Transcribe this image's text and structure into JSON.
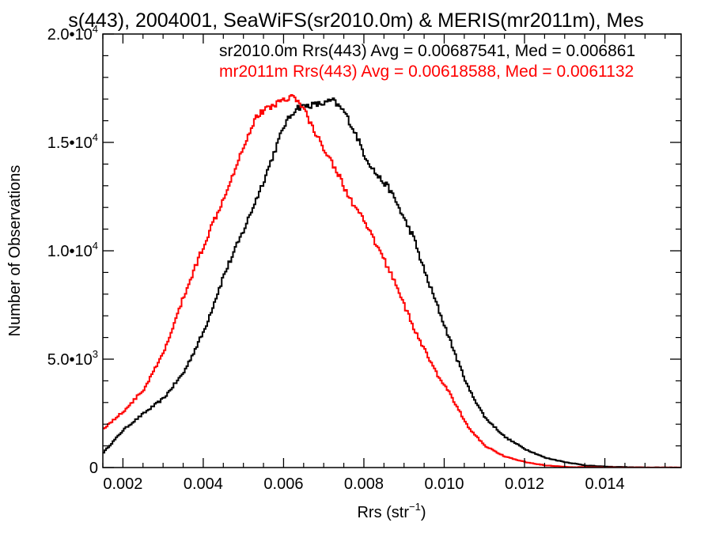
{
  "chart_data": {
    "type": "line",
    "title": "s(443), 2004001, SeaWiFS(sr2010.0m) & MERIS(mr2011m), Mes",
    "xlabel": "Rrs (str",
    "xlabel_sup": "−1",
    "xlabel_end": ")",
    "ylabel": "Number of Observations",
    "xlim": [
      0.0015,
      0.0159
    ],
    "ylim": [
      0,
      20000
    ],
    "grid": false,
    "legend_position": "top-right",
    "x_ticks": [
      {
        "value": 0.002,
        "label": "0.002"
      },
      {
        "value": 0.004,
        "label": "0.004"
      },
      {
        "value": 0.006,
        "label": "0.006"
      },
      {
        "value": 0.008,
        "label": "0.008"
      },
      {
        "value": 0.01,
        "label": "0.010"
      },
      {
        "value": 0.012,
        "label": "0.012"
      },
      {
        "value": 0.014,
        "label": "0.014"
      }
    ],
    "y_ticks": [
      {
        "value": 0,
        "mantissa": "0",
        "exp": ""
      },
      {
        "value": 5000,
        "mantissa": "5.0•10",
        "exp": "3"
      },
      {
        "value": 10000,
        "mantissa": "1.0•10",
        "exp": "4"
      },
      {
        "value": 15000,
        "mantissa": "1.5•10",
        "exp": "4"
      },
      {
        "value": 20000,
        "mantissa": "2.0•10",
        "exp": "4"
      }
    ],
    "series": [
      {
        "name": "sr2010.0m Rrs(443) Avg = 0.00687541, Med = 0.006861",
        "color": "#000000",
        "points": [
          [
            0.0015,
            700
          ],
          [
            0.002,
            1750
          ],
          [
            0.0025,
            2500
          ],
          [
            0.003,
            3200
          ],
          [
            0.0035,
            4400
          ],
          [
            0.004,
            6300
          ],
          [
            0.0045,
            8900
          ],
          [
            0.005,
            11000
          ],
          [
            0.0055,
            13300
          ],
          [
            0.006,
            15800
          ],
          [
            0.0063,
            16600
          ],
          [
            0.0066,
            16700
          ],
          [
            0.007,
            16800
          ],
          [
            0.0072,
            16950
          ],
          [
            0.0075,
            16400
          ],
          [
            0.0078,
            15300
          ],
          [
            0.008,
            14400
          ],
          [
            0.0083,
            13500
          ],
          [
            0.0086,
            12900
          ],
          [
            0.0088,
            12200
          ],
          [
            0.009,
            11400
          ],
          [
            0.0092,
            10700
          ],
          [
            0.0095,
            9000
          ],
          [
            0.0098,
            7500
          ],
          [
            0.01,
            6500
          ],
          [
            0.0103,
            5000
          ],
          [
            0.0106,
            3600
          ],
          [
            0.011,
            2300
          ],
          [
            0.0115,
            1400
          ],
          [
            0.012,
            850
          ],
          [
            0.0125,
            450
          ],
          [
            0.013,
            250
          ],
          [
            0.0135,
            100
          ],
          [
            0.014,
            40
          ],
          [
            0.015,
            0
          ],
          [
            0.0159,
            0
          ]
        ]
      },
      {
        "name": "mr2011m Rrs(443) Avg = 0.00618588, Med = 0.0061132",
        "color": "#ff0000",
        "points": [
          [
            0.0015,
            1800
          ],
          [
            0.002,
            2600
          ],
          [
            0.0025,
            3600
          ],
          [
            0.003,
            5300
          ],
          [
            0.0035,
            7900
          ],
          [
            0.004,
            10300
          ],
          [
            0.0045,
            12500
          ],
          [
            0.005,
            14900
          ],
          [
            0.0053,
            16200
          ],
          [
            0.0056,
            16600
          ],
          [
            0.006,
            17000
          ],
          [
            0.0062,
            17150
          ],
          [
            0.0065,
            16500
          ],
          [
            0.0068,
            15300
          ],
          [
            0.007,
            14700
          ],
          [
            0.0073,
            13700
          ],
          [
            0.0076,
            12500
          ],
          [
            0.008,
            11300
          ],
          [
            0.0084,
            9900
          ],
          [
            0.0088,
            8400
          ],
          [
            0.0092,
            6500
          ],
          [
            0.0095,
            5400
          ],
          [
            0.0098,
            4300
          ],
          [
            0.01,
            3800
          ],
          [
            0.0103,
            2800
          ],
          [
            0.0106,
            1800
          ],
          [
            0.011,
            1000
          ],
          [
            0.0115,
            500
          ],
          [
            0.012,
            250
          ],
          [
            0.0125,
            100
          ],
          [
            0.013,
            30
          ],
          [
            0.014,
            0
          ],
          [
            0.0159,
            0
          ]
        ]
      }
    ]
  }
}
